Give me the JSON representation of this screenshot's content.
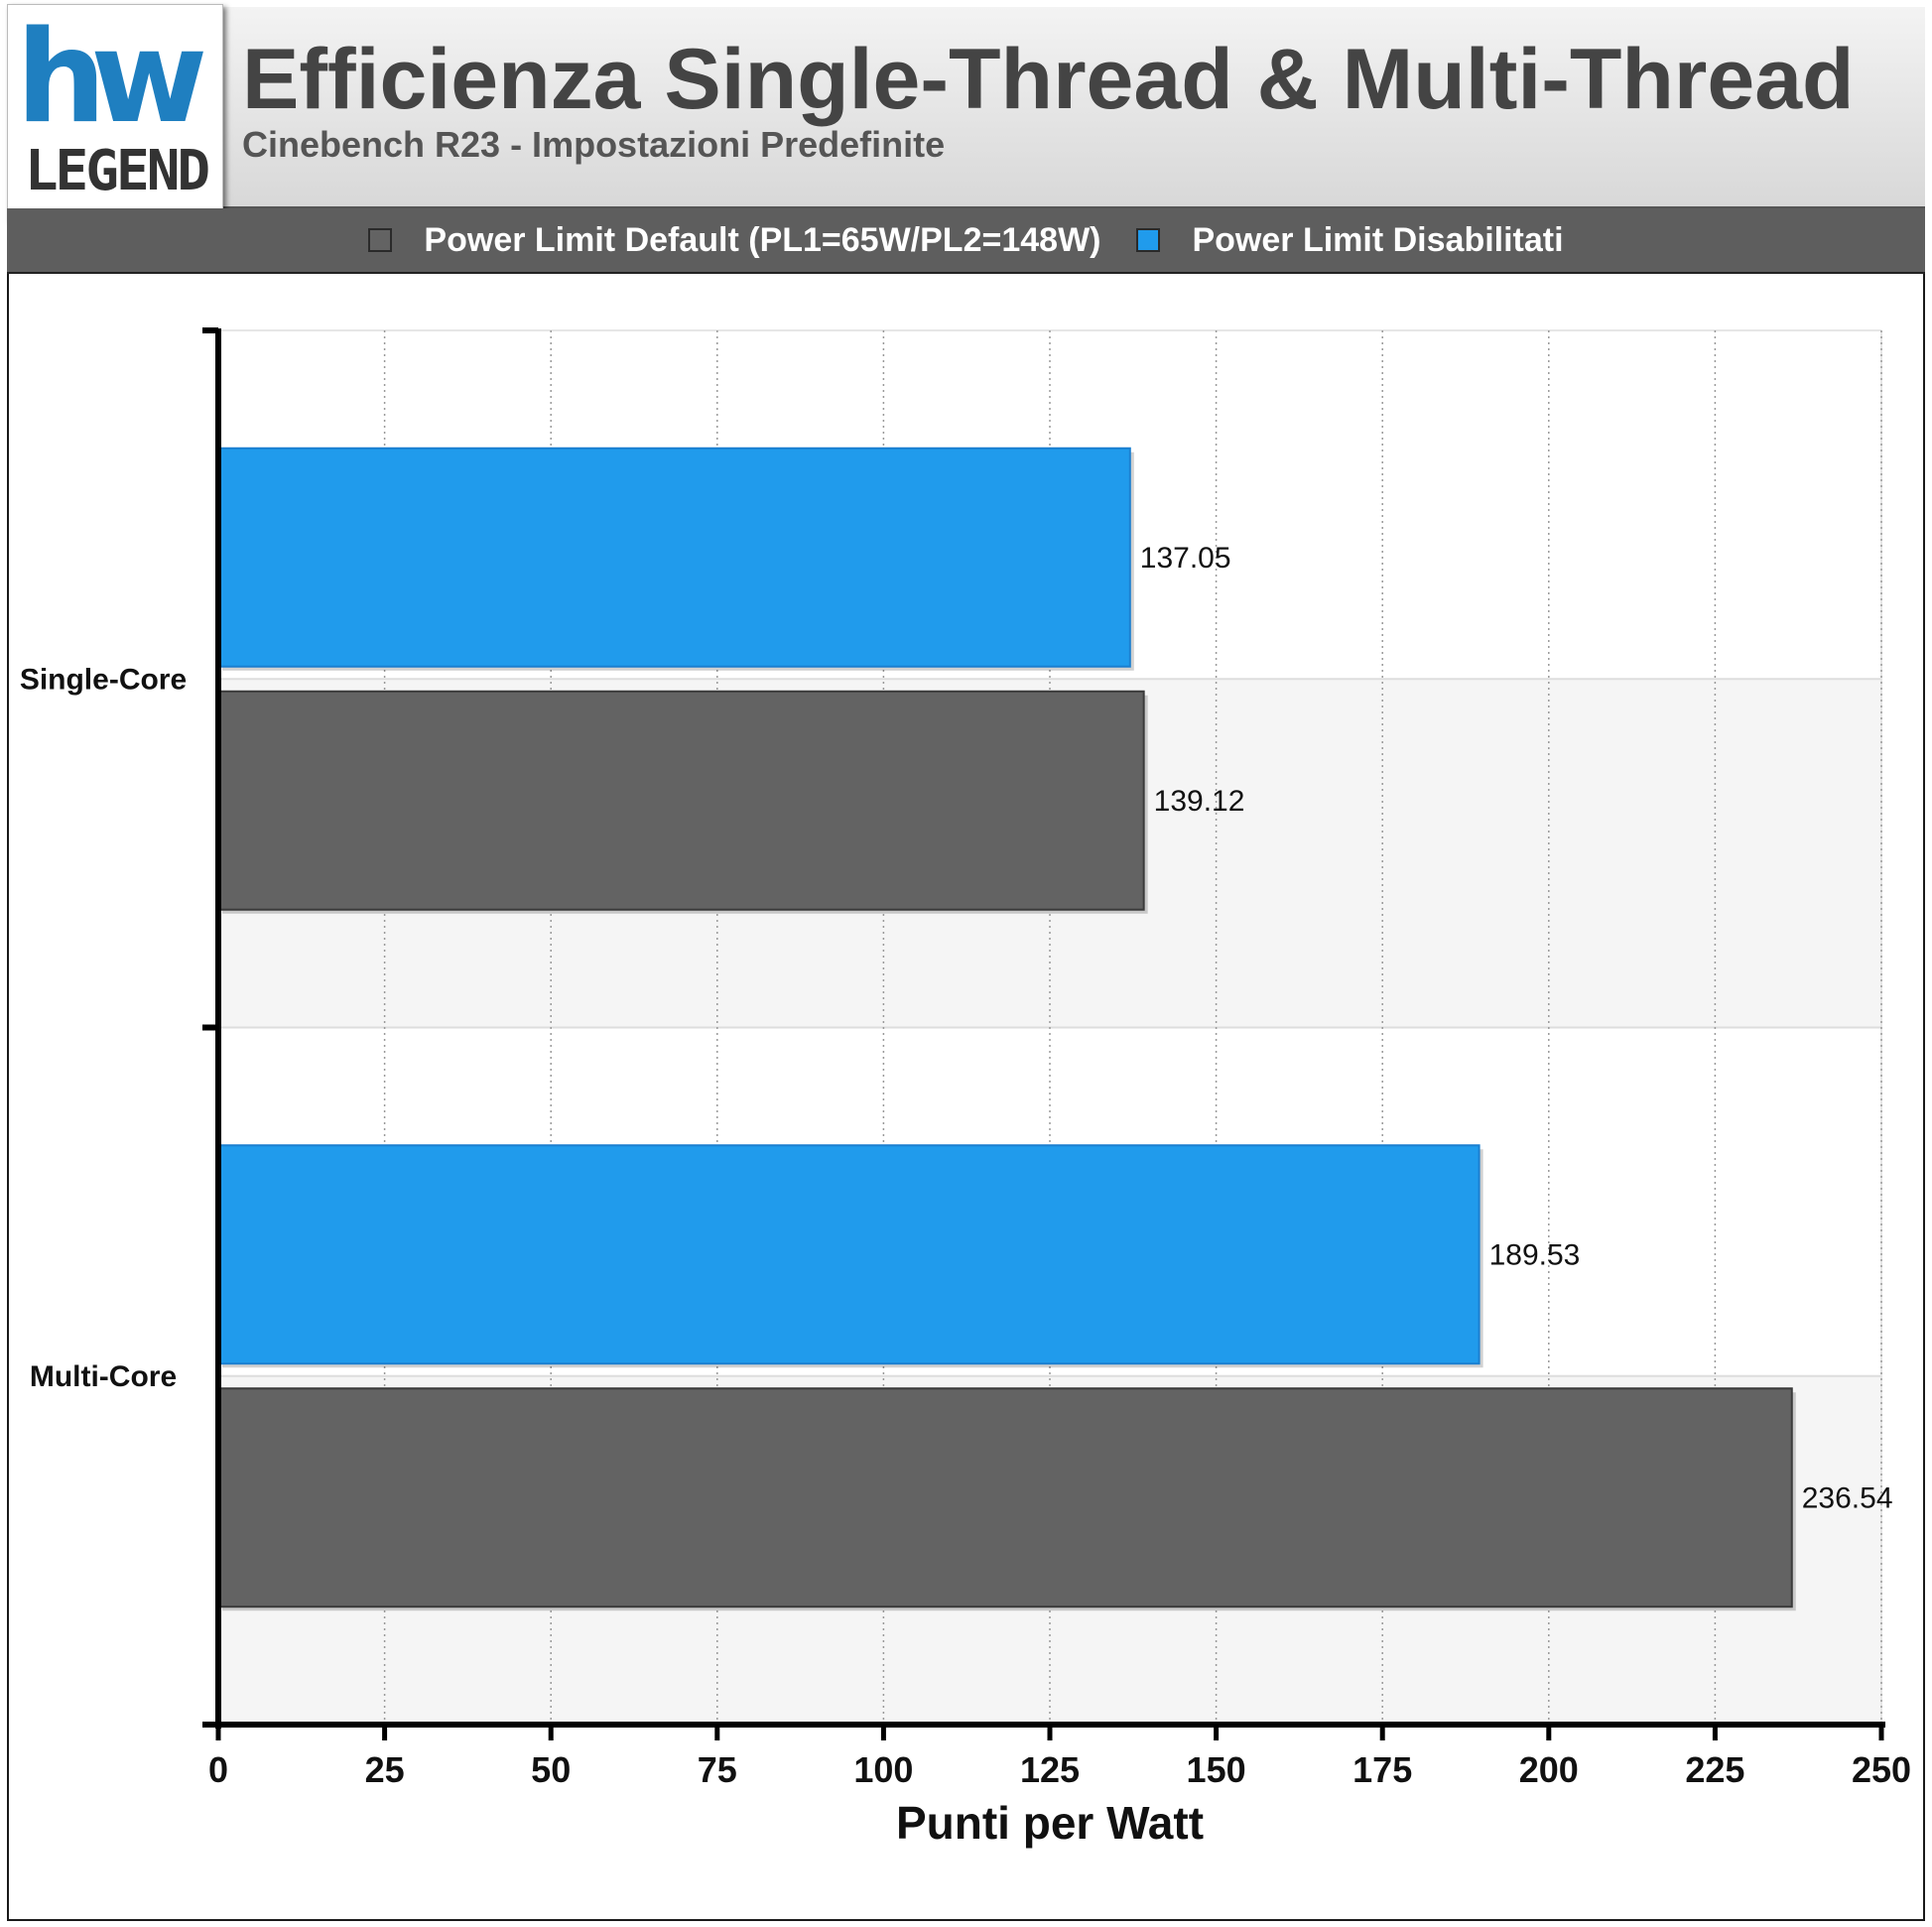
{
  "logo": {
    "mark": "hw",
    "word": "LEGEND"
  },
  "colors": {
    "default": "#636363",
    "disabled": "#209bec"
  },
  "chart_data": {
    "type": "bar",
    "orientation": "horizontal",
    "title": "Efficienza Single-Thread & Multi-Thread",
    "subtitle": "Cinebench R23 - Impostazioni Predefinite",
    "xlabel": "Punti per Watt",
    "ylabel": "",
    "xlim": [
      0,
      250
    ],
    "xticks": [
      "0",
      "25",
      "50",
      "75",
      "100",
      "125",
      "150",
      "175",
      "200",
      "225",
      "250"
    ],
    "categories": [
      "Single-Core",
      "Multi-Core"
    ],
    "series": [
      {
        "name": "Power Limit Disabilitati",
        "color": "#209bec",
        "values": [
          137.05,
          189.53
        ],
        "labels": [
          "137.05",
          "189.53"
        ]
      },
      {
        "name": "Power Limit Default (PL1=65W/PL2=148W)",
        "color": "#636363",
        "values": [
          139.12,
          236.54
        ],
        "labels": [
          "139.12",
          "236.54"
        ]
      }
    ],
    "legend_order": [
      1,
      0
    ],
    "legend_position": "top",
    "grid": true
  }
}
